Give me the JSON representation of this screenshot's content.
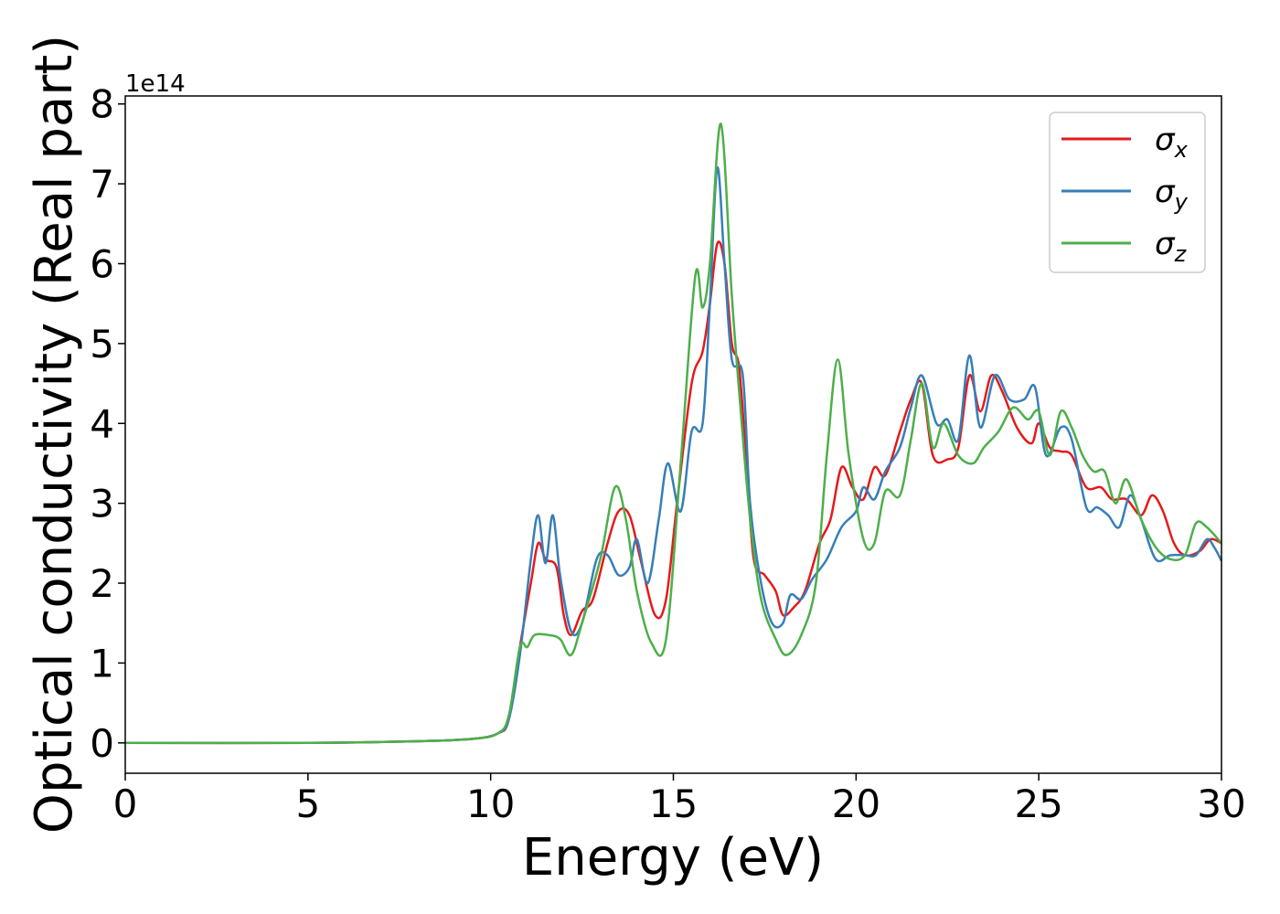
{
  "chart_data": {
    "type": "line",
    "xlabel": "Energy (eV)",
    "ylabel": "Optical conductivity (Real part)",
    "y_offset_label": "1e14",
    "xlim": [
      0,
      30
    ],
    "ylim": [
      -0.38,
      8.1
    ],
    "y_scale_multiplier": 100000000000000.0,
    "xticks": [
      0,
      5,
      10,
      15,
      20,
      25,
      30
    ],
    "yticks": [
      0,
      1,
      2,
      3,
      4,
      5,
      6,
      7,
      8
    ],
    "grid": false,
    "legend_position": "top-right",
    "series": [
      {
        "name": "σx",
        "name_base": "σ",
        "name_sub": "x",
        "color": "#e41a1c",
        "points": [
          [
            0,
            0
          ],
          [
            5,
            0
          ],
          [
            8,
            0.02
          ],
          [
            9.5,
            0.05
          ],
          [
            10.2,
            0.12
          ],
          [
            10.5,
            0.3
          ],
          [
            10.8,
            1.2
          ],
          [
            11.1,
            2.0
          ],
          [
            11.3,
            2.5
          ],
          [
            11.5,
            2.3
          ],
          [
            11.8,
            2.2
          ],
          [
            12.0,
            1.6
          ],
          [
            12.2,
            1.35
          ],
          [
            12.5,
            1.65
          ],
          [
            12.8,
            1.8
          ],
          [
            13.2,
            2.5
          ],
          [
            13.5,
            2.9
          ],
          [
            13.8,
            2.85
          ],
          [
            14.1,
            2.3
          ],
          [
            14.5,
            1.6
          ],
          [
            14.8,
            1.8
          ],
          [
            15.1,
            3.0
          ],
          [
            15.5,
            4.5
          ],
          [
            15.8,
            4.9
          ],
          [
            16.0,
            5.5
          ],
          [
            16.2,
            6.25
          ],
          [
            16.4,
            6.0
          ],
          [
            16.6,
            5.0
          ],
          [
            16.8,
            4.7
          ],
          [
            17.0,
            3.5
          ],
          [
            17.2,
            2.3
          ],
          [
            17.5,
            2.1
          ],
          [
            17.8,
            1.9
          ],
          [
            18.0,
            1.6
          ],
          [
            18.3,
            1.7
          ],
          [
            18.6,
            1.9
          ],
          [
            19.0,
            2.5
          ],
          [
            19.3,
            2.8
          ],
          [
            19.6,
            3.45
          ],
          [
            19.9,
            3.2
          ],
          [
            20.2,
            3.05
          ],
          [
            20.5,
            3.45
          ],
          [
            20.8,
            3.35
          ],
          [
            21.2,
            3.9
          ],
          [
            21.5,
            4.3
          ],
          [
            21.8,
            4.5
          ],
          [
            22.1,
            3.6
          ],
          [
            22.5,
            3.55
          ],
          [
            22.8,
            3.7
          ],
          [
            23.1,
            4.6
          ],
          [
            23.4,
            4.15
          ],
          [
            23.7,
            4.6
          ],
          [
            24.0,
            4.4
          ],
          [
            24.4,
            3.95
          ],
          [
            24.8,
            3.75
          ],
          [
            25.0,
            4.0
          ],
          [
            25.3,
            3.7
          ],
          [
            25.6,
            3.65
          ],
          [
            25.9,
            3.6
          ],
          [
            26.3,
            3.2
          ],
          [
            26.7,
            3.2
          ],
          [
            27.0,
            3.05
          ],
          [
            27.4,
            3.05
          ],
          [
            27.8,
            2.85
          ],
          [
            28.1,
            3.1
          ],
          [
            28.4,
            2.9
          ],
          [
            28.7,
            2.5
          ],
          [
            29.0,
            2.35
          ],
          [
            29.4,
            2.4
          ],
          [
            29.7,
            2.55
          ],
          [
            30,
            2.5
          ]
        ]
      },
      {
        "name": "σy",
        "name_base": "σ",
        "name_sub": "y",
        "color": "#377eb8",
        "points": [
          [
            0,
            0
          ],
          [
            5,
            0
          ],
          [
            8,
            0.02
          ],
          [
            9.5,
            0.05
          ],
          [
            10.2,
            0.12
          ],
          [
            10.5,
            0.3
          ],
          [
            10.8,
            1.1
          ],
          [
            11.1,
            2.3
          ],
          [
            11.3,
            2.85
          ],
          [
            11.5,
            2.25
          ],
          [
            11.7,
            2.85
          ],
          [
            11.9,
            2.1
          ],
          [
            12.2,
            1.4
          ],
          [
            12.5,
            1.5
          ],
          [
            12.9,
            2.3
          ],
          [
            13.2,
            2.35
          ],
          [
            13.5,
            2.1
          ],
          [
            13.8,
            2.2
          ],
          [
            14.0,
            2.55
          ],
          [
            14.3,
            2.0
          ],
          [
            14.6,
            2.8
          ],
          [
            14.85,
            3.5
          ],
          [
            15.2,
            2.9
          ],
          [
            15.5,
            3.9
          ],
          [
            15.8,
            4.0
          ],
          [
            16.0,
            5.5
          ],
          [
            16.2,
            7.2
          ],
          [
            16.4,
            6.0
          ],
          [
            16.6,
            4.8
          ],
          [
            16.9,
            4.6
          ],
          [
            17.1,
            3.0
          ],
          [
            17.4,
            2.0
          ],
          [
            17.7,
            1.5
          ],
          [
            18.0,
            1.5
          ],
          [
            18.2,
            1.85
          ],
          [
            18.5,
            1.8
          ],
          [
            18.8,
            2.05
          ],
          [
            19.2,
            2.3
          ],
          [
            19.6,
            2.7
          ],
          [
            20.0,
            2.9
          ],
          [
            20.2,
            3.2
          ],
          [
            20.5,
            3.05
          ],
          [
            20.8,
            3.4
          ],
          [
            21.2,
            3.7
          ],
          [
            21.5,
            4.2
          ],
          [
            21.8,
            4.6
          ],
          [
            22.2,
            4.0
          ],
          [
            22.5,
            4.05
          ],
          [
            22.8,
            3.8
          ],
          [
            23.1,
            4.85
          ],
          [
            23.4,
            3.95
          ],
          [
            23.8,
            4.6
          ],
          [
            24.2,
            4.3
          ],
          [
            24.6,
            4.3
          ],
          [
            24.9,
            4.45
          ],
          [
            25.2,
            3.6
          ],
          [
            25.6,
            3.95
          ],
          [
            25.9,
            3.8
          ],
          [
            26.3,
            2.95
          ],
          [
            26.6,
            2.95
          ],
          [
            26.9,
            2.85
          ],
          [
            27.2,
            2.7
          ],
          [
            27.5,
            3.1
          ],
          [
            27.8,
            2.8
          ],
          [
            28.2,
            2.3
          ],
          [
            28.6,
            2.35
          ],
          [
            29.0,
            2.35
          ],
          [
            29.3,
            2.35
          ],
          [
            29.6,
            2.55
          ],
          [
            29.8,
            2.45
          ],
          [
            30,
            2.28
          ]
        ]
      },
      {
        "name": "σz",
        "name_base": "σ",
        "name_sub": "z",
        "color": "#4daf4a",
        "points": [
          [
            0,
            0
          ],
          [
            5,
            0
          ],
          [
            8,
            0.02
          ],
          [
            9.5,
            0.05
          ],
          [
            10.2,
            0.12
          ],
          [
            10.5,
            0.35
          ],
          [
            10.8,
            1.2
          ],
          [
            11.0,
            1.2
          ],
          [
            11.2,
            1.35
          ],
          [
            11.6,
            1.35
          ],
          [
            11.9,
            1.3
          ],
          [
            12.2,
            1.1
          ],
          [
            12.5,
            1.5
          ],
          [
            13.0,
            2.3
          ],
          [
            13.4,
            3.2
          ],
          [
            13.7,
            2.8
          ],
          [
            14.0,
            1.9
          ],
          [
            14.4,
            1.25
          ],
          [
            14.8,
            1.3
          ],
          [
            15.2,
            3.5
          ],
          [
            15.6,
            5.85
          ],
          [
            15.8,
            5.45
          ],
          [
            16.0,
            6.0
          ],
          [
            16.3,
            7.75
          ],
          [
            16.6,
            5.6
          ],
          [
            16.8,
            4.4
          ],
          [
            17.1,
            2.8
          ],
          [
            17.4,
            1.8
          ],
          [
            17.8,
            1.3
          ],
          [
            18.1,
            1.1
          ],
          [
            18.5,
            1.35
          ],
          [
            18.9,
            2.0
          ],
          [
            19.2,
            3.6
          ],
          [
            19.5,
            4.8
          ],
          [
            19.8,
            3.6
          ],
          [
            20.2,
            2.55
          ],
          [
            20.5,
            2.5
          ],
          [
            20.8,
            3.15
          ],
          [
            21.2,
            3.1
          ],
          [
            21.5,
            3.8
          ],
          [
            21.8,
            4.5
          ],
          [
            22.1,
            3.7
          ],
          [
            22.4,
            4.0
          ],
          [
            22.8,
            3.6
          ],
          [
            23.2,
            3.5
          ],
          [
            23.5,
            3.7
          ],
          [
            23.9,
            3.9
          ],
          [
            24.3,
            4.2
          ],
          [
            24.7,
            4.05
          ],
          [
            25.0,
            4.15
          ],
          [
            25.3,
            3.6
          ],
          [
            25.6,
            4.15
          ],
          [
            25.9,
            3.95
          ],
          [
            26.2,
            3.6
          ],
          [
            26.5,
            3.4
          ],
          [
            26.8,
            3.4
          ],
          [
            27.1,
            3.0
          ],
          [
            27.4,
            3.3
          ],
          [
            27.8,
            2.8
          ],
          [
            28.2,
            2.45
          ],
          [
            28.6,
            2.3
          ],
          [
            29.0,
            2.35
          ],
          [
            29.3,
            2.75
          ],
          [
            29.6,
            2.7
          ],
          [
            30,
            2.5
          ]
        ]
      }
    ]
  }
}
